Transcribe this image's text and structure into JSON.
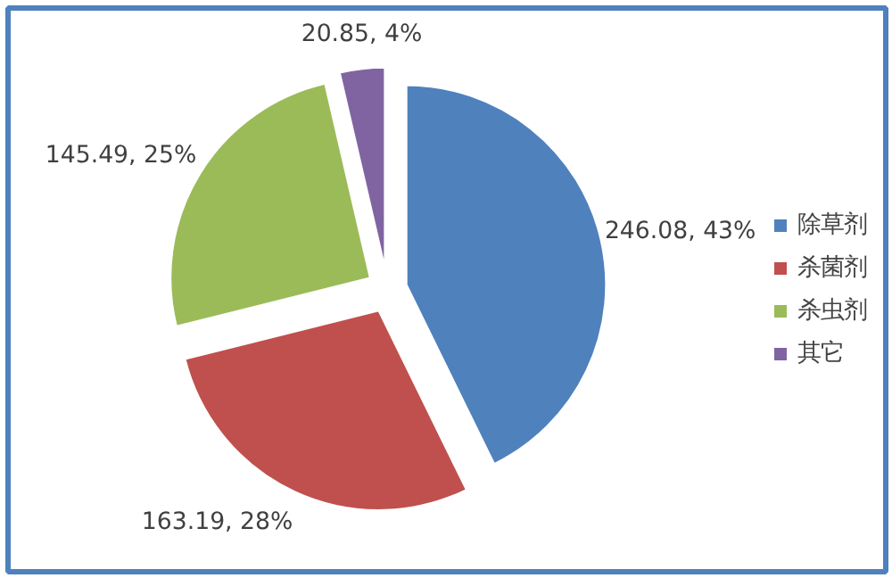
{
  "chart_data": {
    "type": "pie",
    "categories": [
      "除草剂",
      "杀菌剂",
      "杀虫剂",
      "其它"
    ],
    "values": [
      246.08,
      163.19,
      145.49,
      20.85
    ],
    "colors": [
      "#4f81bd",
      "#c0504d",
      "#9bbb59",
      "#8064a2"
    ],
    "value_labels": [
      "246.08, 43%",
      "163.19, 28%",
      "145.49, 25%",
      "20.85, 4%"
    ],
    "legend": "right"
  }
}
